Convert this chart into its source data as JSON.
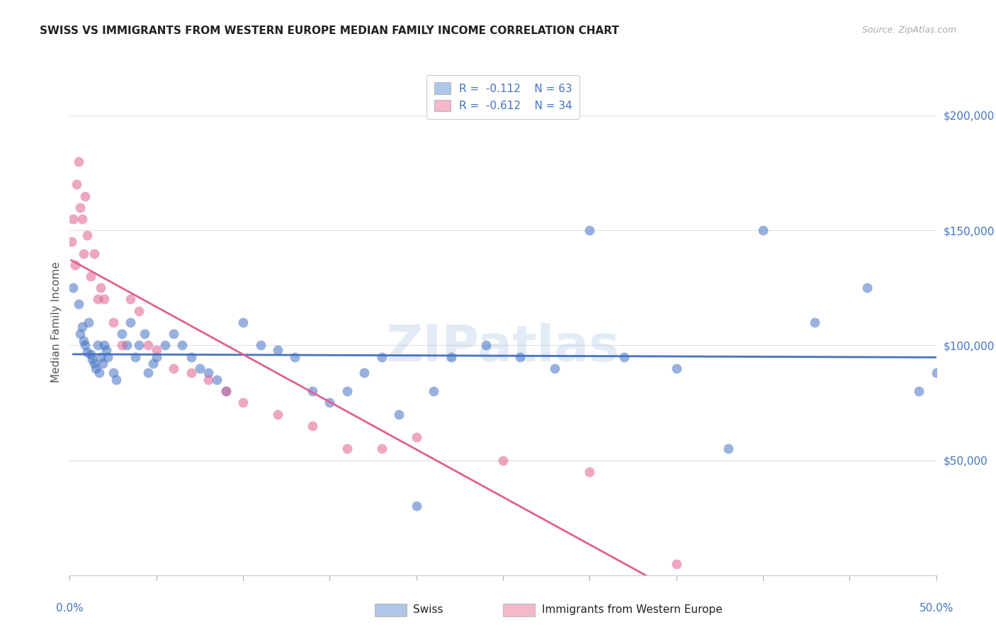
{
  "title": "SWISS VS IMMIGRANTS FROM WESTERN EUROPE MEDIAN FAMILY INCOME CORRELATION CHART",
  "source": "Source: ZipAtlas.com",
  "ylabel": "Median Family Income",
  "ytick_labels": [
    "$50,000",
    "$100,000",
    "$150,000",
    "$200,000"
  ],
  "ytick_values": [
    50000,
    100000,
    150000,
    200000
  ],
  "xlim": [
    0.0,
    0.5
  ],
  "ylim": [
    0,
    220000
  ],
  "watermark": "ZIPatlas",
  "legend": {
    "swiss": {
      "R": "-0.112",
      "N": "63",
      "color": "#aec6e8"
    },
    "immigrants": {
      "R": "-0.612",
      "N": "34",
      "color": "#f4b8c8"
    }
  },
  "swiss_x": [
    0.002,
    0.005,
    0.006,
    0.007,
    0.008,
    0.009,
    0.01,
    0.011,
    0.012,
    0.013,
    0.014,
    0.015,
    0.016,
    0.017,
    0.018,
    0.019,
    0.02,
    0.021,
    0.022,
    0.025,
    0.027,
    0.03,
    0.033,
    0.035,
    0.038,
    0.04,
    0.043,
    0.045,
    0.048,
    0.05,
    0.055,
    0.06,
    0.065,
    0.07,
    0.075,
    0.08,
    0.085,
    0.09,
    0.1,
    0.11,
    0.12,
    0.13,
    0.14,
    0.15,
    0.16,
    0.17,
    0.18,
    0.19,
    0.2,
    0.21,
    0.22,
    0.24,
    0.26,
    0.28,
    0.3,
    0.32,
    0.35,
    0.38,
    0.4,
    0.43,
    0.46,
    0.49,
    0.5
  ],
  "swiss_y": [
    125000,
    118000,
    105000,
    108000,
    102000,
    100000,
    97000,
    110000,
    96000,
    94000,
    92000,
    90000,
    100000,
    88000,
    95000,
    92000,
    100000,
    98000,
    95000,
    88000,
    85000,
    105000,
    100000,
    110000,
    95000,
    100000,
    105000,
    88000,
    92000,
    95000,
    100000,
    105000,
    100000,
    95000,
    90000,
    88000,
    85000,
    80000,
    110000,
    100000,
    98000,
    95000,
    80000,
    75000,
    80000,
    88000,
    95000,
    70000,
    30000,
    80000,
    95000,
    100000,
    95000,
    90000,
    150000,
    95000,
    90000,
    55000,
    150000,
    110000,
    125000,
    80000,
    88000
  ],
  "immigrants_x": [
    0.001,
    0.002,
    0.003,
    0.004,
    0.005,
    0.006,
    0.007,
    0.008,
    0.009,
    0.01,
    0.012,
    0.014,
    0.016,
    0.018,
    0.02,
    0.025,
    0.03,
    0.035,
    0.04,
    0.045,
    0.05,
    0.06,
    0.07,
    0.08,
    0.09,
    0.1,
    0.12,
    0.14,
    0.16,
    0.18,
    0.2,
    0.25,
    0.3,
    0.35
  ],
  "immigrants_y": [
    145000,
    155000,
    135000,
    170000,
    180000,
    160000,
    155000,
    140000,
    165000,
    148000,
    130000,
    140000,
    120000,
    125000,
    120000,
    110000,
    100000,
    120000,
    115000,
    100000,
    98000,
    90000,
    88000,
    85000,
    80000,
    75000,
    70000,
    65000,
    55000,
    55000,
    60000,
    50000,
    45000,
    5000
  ],
  "swiss_line_color": "#4472c4",
  "immigrants_line_color": "#e06090",
  "regression_dashed_color": "#d0a0a8",
  "background_color": "#ffffff",
  "grid_color": "#e0e0e0"
}
